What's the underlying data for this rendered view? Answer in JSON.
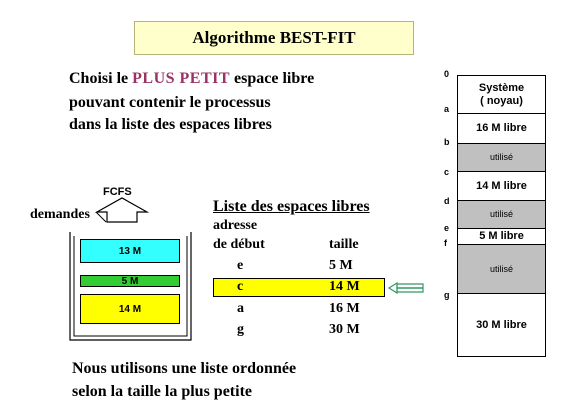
{
  "title": "Algorithme  BEST-FIT",
  "intro": {
    "line1_pre": "Choisi le ",
    "line1_highlight": "PLUS PETIT",
    "line1_post": "  espace libre",
    "line2": "pouvant contenir le processus",
    "line3": "dans la liste des espaces libres"
  },
  "queue": {
    "label_fcfs": "FCFS",
    "label_demandes": "demandes",
    "items": [
      "13 M",
      "5 M",
      "14 M"
    ],
    "colors": {
      "cyan": "#33ffff",
      "green": "#33cc33",
      "yellow": "#ffff00"
    }
  },
  "free_list": {
    "heading": "Liste  des  espaces  libres",
    "col_address_line1": "adresse",
    "col_address_line2": "de  début",
    "col_size": "taille",
    "rows": [
      {
        "address": "e",
        "size": "5 M"
      },
      {
        "address": "c",
        "size": "14 M",
        "selected": true
      },
      {
        "address": "a",
        "size": "16 M"
      },
      {
        "address": "g",
        "size": "30 M"
      }
    ],
    "selected_color": "#ffff00",
    "arrow_color": "#339966"
  },
  "memory": {
    "addresses": [
      "0",
      "a",
      "b",
      "c",
      "d",
      "e",
      "f",
      "g"
    ],
    "blocks": [
      {
        "label": "Système\n( noyau)",
        "used": false
      },
      {
        "label": "16 M  libre",
        "used": false
      },
      {
        "label": "utilisé",
        "used": true
      },
      {
        "label": "14 M  libre",
        "used": false
      },
      {
        "label": "utilisé",
        "used": true
      },
      {
        "label": "5 M  libre",
        "used": false
      },
      {
        "label": "utilisé",
        "used": true
      },
      {
        "label": "30 M  libre",
        "used": false
      }
    ]
  },
  "footer": {
    "line1": "Nous utilisons une liste ordonnée",
    "line2": "selon la taille la plus petite"
  }
}
